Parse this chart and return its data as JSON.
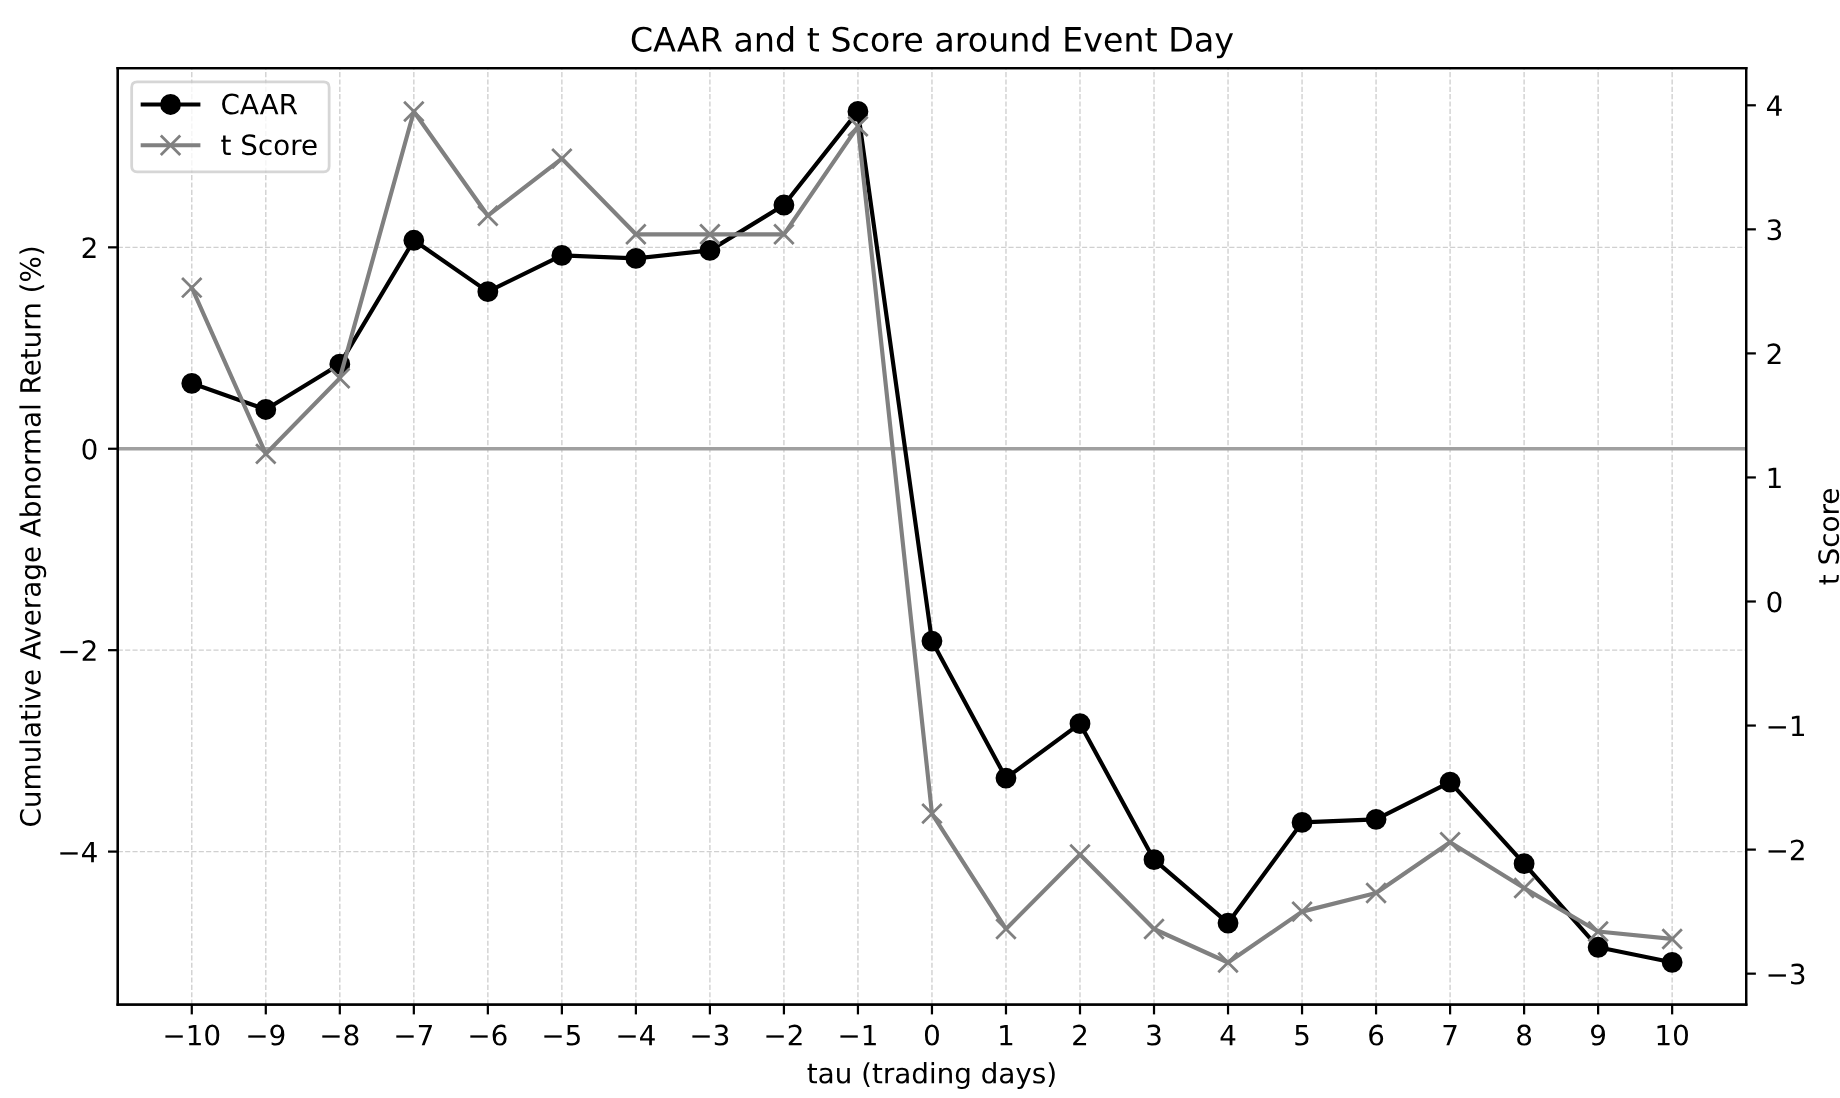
{
  "chart_data": {
    "type": "line",
    "title": "CAAR and t Score around Event Day",
    "xlabel": "tau (trading days)",
    "ylabel": "Cumulative Average Abnormal Return (%)",
    "y2label": "t Score",
    "x": [
      -10,
      -9,
      -8,
      -7,
      -6,
      -5,
      -4,
      -3,
      -2,
      -1,
      0,
      1,
      2,
      3,
      4,
      5,
      6,
      7,
      8,
      9,
      10
    ],
    "series": [
      {
        "name": "CAAR",
        "color": "#000000",
        "marker": "circle",
        "values": [
          0.65,
          0.39,
          0.84,
          2.07,
          1.56,
          1.92,
          1.89,
          1.97,
          2.42,
          3.35,
          -1.91,
          -3.27,
          -2.73,
          -4.08,
          -4.71,
          -3.71,
          -3.68,
          -3.31,
          -4.12,
          -4.95,
          -5.1
        ]
      },
      {
        "name": "t Score",
        "color": "#808080",
        "marker": "cross",
        "axis": "y2",
        "values": [
          2.53,
          1.19,
          1.8,
          3.95,
          3.11,
          3.57,
          2.96,
          2.96,
          2.96,
          3.83,
          -1.71,
          -2.64,
          -2.04,
          -2.64,
          -2.91,
          -2.5,
          -2.35,
          -1.94,
          -2.31,
          -2.66,
          -2.72
        ]
      }
    ],
    "xlim": [
      -11,
      11
    ],
    "xticks": [
      -10,
      -9,
      -8,
      -7,
      -6,
      -5,
      -4,
      -3,
      -2,
      -1,
      0,
      1,
      2,
      3,
      4,
      5,
      6,
      7,
      8,
      9,
      10
    ],
    "ylim": [
      -5.52,
      3.78
    ],
    "yticks": [
      -4,
      -2,
      0,
      2
    ],
    "y2lim": [
      -3.25,
      4.3
    ],
    "y2ticks": [
      -3,
      -2,
      -1,
      0,
      1,
      2,
      3,
      4
    ],
    "ref_lines": [
      {
        "axis": "y",
        "value": 0,
        "color": "#a0a0a0"
      }
    ],
    "grid": true,
    "legend": "top left",
    "line_style": "solid"
  }
}
